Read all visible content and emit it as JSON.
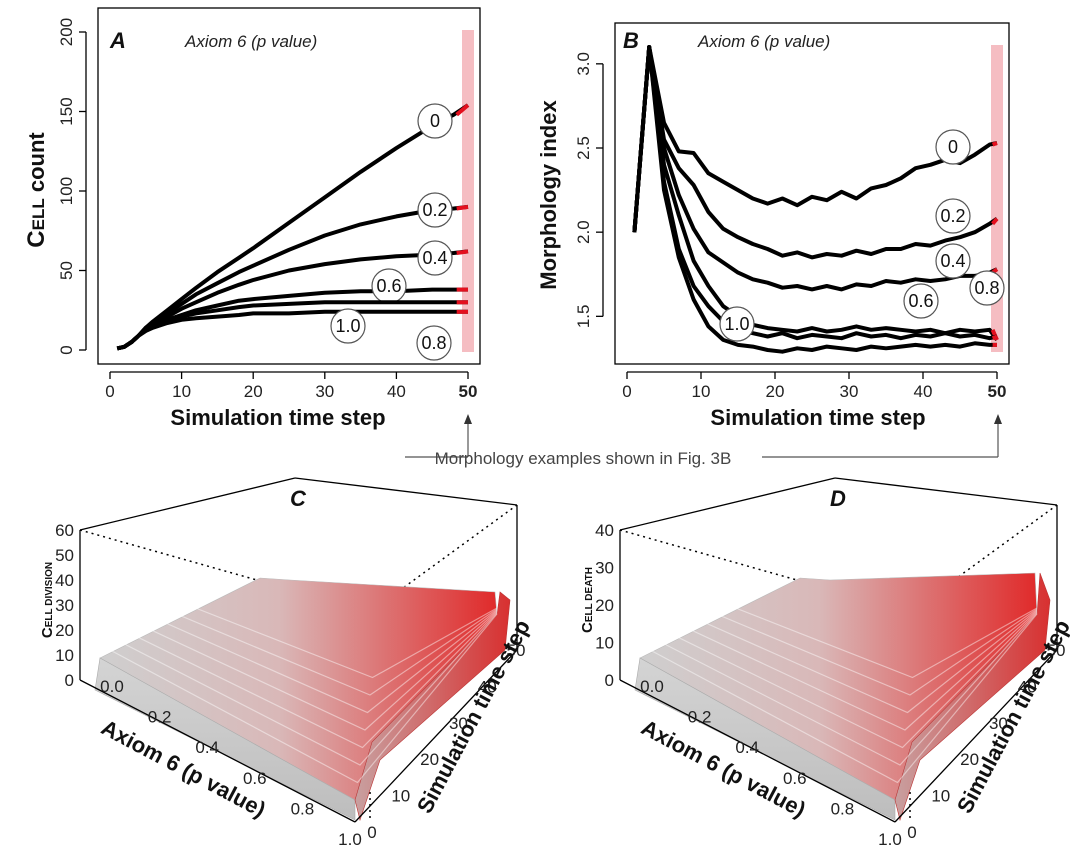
{
  "figure": {
    "annotation": "Morphology examples shown in Fig. 3B",
    "highlight_color": "#f2a7ad",
    "line_color": "#000000",
    "end_mark_color": "#e3101e"
  },
  "chart_data": [
    {
      "id": "A",
      "type": "line",
      "panel_letter": "A",
      "subtitle": "Axiom 6 (p value)",
      "xlabel": "Simulation time step",
      "ylabel": "Cell count",
      "xlim": [
        0,
        50
      ],
      "ylim": [
        0,
        200
      ],
      "xticks": [
        0,
        10,
        20,
        30,
        40,
        50
      ],
      "yticks": [
        0,
        50,
        100,
        150,
        200
      ],
      "highlight_x": 50,
      "grid": false,
      "x": [
        1,
        2,
        3,
        4,
        5,
        6,
        8,
        10,
        12,
        15,
        18,
        20,
        25,
        30,
        35,
        40,
        45,
        48,
        50
      ],
      "series": [
        {
          "name": "0",
          "values": [
            1,
            2,
            5,
            9,
            14,
            18,
            25,
            32,
            39,
            49,
            58,
            64,
            80,
            96,
            112,
            127,
            141,
            148,
            154
          ]
        },
        {
          "name": "0.2",
          "values": [
            1,
            2,
            5,
            9,
            14,
            17,
            23,
            29,
            35,
            42,
            49,
            53,
            63,
            72,
            79,
            84,
            88,
            89,
            90
          ]
        },
        {
          "name": "0.4",
          "values": [
            1,
            2,
            5,
            9,
            13,
            16,
            21,
            26,
            30,
            36,
            41,
            44,
            50,
            54,
            57,
            59,
            60,
            61,
            62
          ]
        },
        {
          "name": "0.6",
          "values": [
            1,
            2,
            5,
            9,
            13,
            15,
            19,
            22,
            25,
            28,
            31,
            32,
            34,
            36,
            37,
            37,
            38,
            38,
            38
          ]
        },
        {
          "name": "0.8",
          "values": [
            1,
            2,
            5,
            9,
            13,
            15,
            18,
            21,
            23,
            25,
            27,
            28,
            29,
            30,
            30,
            30,
            30,
            30,
            30
          ]
        },
        {
          "name": "1.0",
          "values": [
            1,
            2,
            5,
            9,
            12,
            14,
            17,
            19,
            20,
            21,
            22,
            23,
            23,
            24,
            24,
            24,
            24,
            24,
            24
          ]
        }
      ]
    },
    {
      "id": "B",
      "type": "line",
      "panel_letter": "B",
      "subtitle": "Axiom 6 (p value)",
      "xlabel": "Simulation time step",
      "ylabel": "Morphology index",
      "xlim": [
        0,
        50
      ],
      "ylim": [
        1.3,
        3.1
      ],
      "xticks": [
        0,
        10,
        20,
        30,
        40,
        50
      ],
      "yticks": [
        1.5,
        2.0,
        2.5,
        3.0
      ],
      "highlight_x": 50,
      "grid": false,
      "x": [
        1,
        3,
        5,
        7,
        9,
        11,
        13,
        15,
        17,
        19,
        21,
        23,
        25,
        27,
        29,
        31,
        33,
        35,
        37,
        39,
        41,
        43,
        45,
        47,
        49,
        50
      ],
      "series": [
        {
          "name": "0",
          "values": [
            2.0,
            3.1,
            2.65,
            2.48,
            2.47,
            2.35,
            2.3,
            2.25,
            2.2,
            2.17,
            2.2,
            2.16,
            2.21,
            2.19,
            2.24,
            2.2,
            2.26,
            2.28,
            2.32,
            2.38,
            2.4,
            2.43,
            2.41,
            2.46,
            2.52,
            2.53
          ]
        },
        {
          "name": "0.2",
          "values": [
            2.0,
            3.1,
            2.55,
            2.38,
            2.28,
            2.12,
            2.02,
            1.97,
            1.93,
            1.9,
            1.86,
            1.88,
            1.85,
            1.87,
            1.86,
            1.89,
            1.87,
            1.9,
            1.9,
            1.93,
            1.92,
            1.95,
            1.97,
            2.0,
            2.05,
            2.08
          ]
        },
        {
          "name": "0.4",
          "values": [
            2.0,
            3.1,
            2.5,
            2.22,
            2.02,
            1.88,
            1.82,
            1.76,
            1.72,
            1.7,
            1.67,
            1.68,
            1.66,
            1.68,
            1.66,
            1.69,
            1.68,
            1.71,
            1.7,
            1.72,
            1.71,
            1.72,
            1.74,
            1.74,
            1.76,
            1.78
          ]
        },
        {
          "name": "0.6",
          "values": [
            2.0,
            3.1,
            2.4,
            2.1,
            1.83,
            1.68,
            1.56,
            1.5,
            1.45,
            1.43,
            1.42,
            1.41,
            1.43,
            1.41,
            1.42,
            1.44,
            1.42,
            1.43,
            1.42,
            1.41,
            1.42,
            1.4,
            1.42,
            1.41,
            1.42,
            1.36
          ]
        },
        {
          "name": "0.8",
          "values": [
            2.0,
            3.1,
            2.3,
            1.9,
            1.68,
            1.56,
            1.47,
            1.42,
            1.4,
            1.38,
            1.4,
            1.37,
            1.39,
            1.38,
            1.37,
            1.4,
            1.38,
            1.39,
            1.37,
            1.39,
            1.38,
            1.4,
            1.38,
            1.39,
            1.37,
            1.38
          ]
        },
        {
          "name": "1.0",
          "values": [
            2.0,
            3.1,
            2.25,
            1.85,
            1.6,
            1.44,
            1.36,
            1.33,
            1.32,
            1.3,
            1.29,
            1.31,
            1.3,
            1.32,
            1.31,
            1.3,
            1.32,
            1.31,
            1.32,
            1.33,
            1.32,
            1.33,
            1.32,
            1.34,
            1.33,
            1.33
          ]
        }
      ]
    },
    {
      "id": "C",
      "type": "surface3d",
      "panel_letter": "C",
      "zlabel": "Cell division",
      "xlabel": "Axiom 6 (p value)",
      "ylabel": "Simulation time step",
      "xlim": [
        0.0,
        1.0
      ],
      "ylim": [
        0,
        50
      ],
      "zlim": [
        0,
        60
      ],
      "xticks": [
        "0.0",
        "0.2",
        "0.4",
        "0.6",
        "0.8",
        "1.0"
      ],
      "yticks": [
        "0",
        "10",
        "20",
        "30",
        "40",
        "50"
      ],
      "zticks": [
        "0",
        "10",
        "20",
        "30",
        "40",
        "50",
        "60"
      ],
      "peak_value": 40,
      "peak_at": {
        "p": 0.0,
        "t": 50
      },
      "color_low": "#d0d0d0",
      "color_high": "#e03030"
    },
    {
      "id": "D",
      "type": "surface3d",
      "panel_letter": "D",
      "zlabel": "Cell death",
      "xlabel": "Axiom 6 (p value)",
      "ylabel": "Simulation time step",
      "xlim": [
        0.0,
        1.0
      ],
      "ylim": [
        0,
        50
      ],
      "zlim": [
        0,
        40
      ],
      "xticks": [
        "0.0",
        "0.2",
        "0.4",
        "0.6",
        "0.8",
        "1.0"
      ],
      "yticks": [
        "0",
        "10",
        "20",
        "30",
        "40",
        "50"
      ],
      "zticks": [
        "0",
        "10",
        "20",
        "30",
        "40"
      ],
      "peak_value": 28,
      "peak_at": {
        "p": 0.0,
        "t": 50
      },
      "color_low": "#d0d0d0",
      "color_high": "#e03030"
    }
  ]
}
